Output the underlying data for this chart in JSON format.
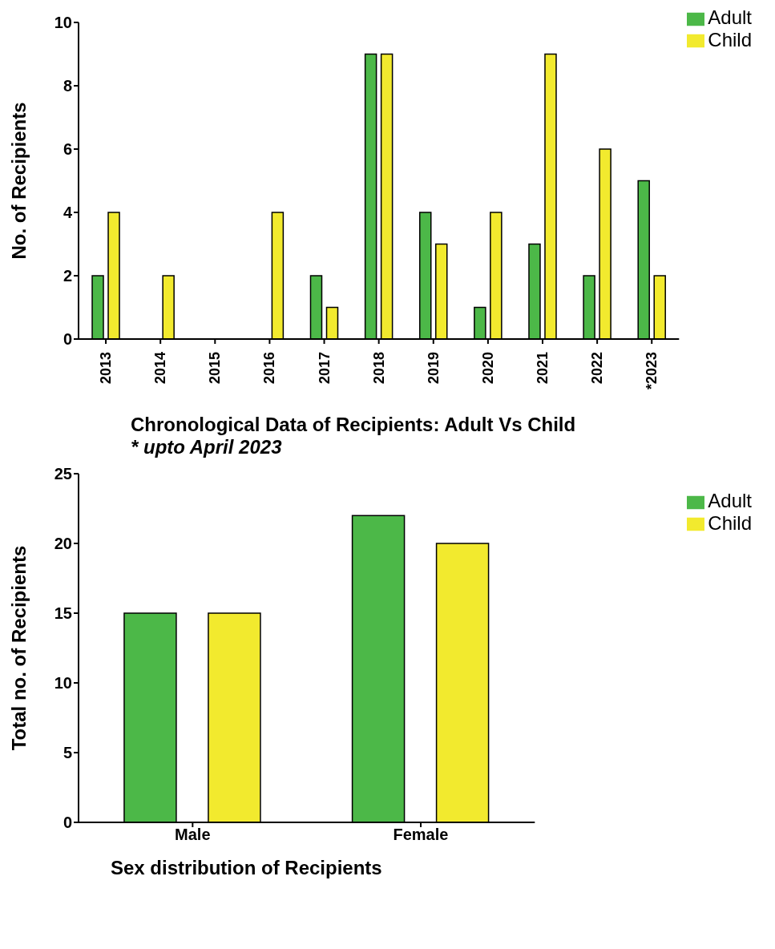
{
  "chart_data": [
    {
      "type": "bar",
      "xlabel": "Chronological Data of Recipients: Adult Vs Child",
      "ylabel": "No. of Recipients",
      "annotations": [
        "* upto April 2023"
      ],
      "categories": [
        "2013",
        "2014",
        "2015",
        "2016",
        "2017",
        "2018",
        "2019",
        "2020",
        "2021",
        "2022",
        "*2023"
      ],
      "series": [
        {
          "name": "Adult",
          "color": "#4cb848",
          "values": [
            2,
            0,
            0,
            0,
            2,
            9,
            4,
            1,
            3,
            2,
            5
          ]
        },
        {
          "name": "Child",
          "color": "#f2ea2e",
          "values": [
            4,
            2,
            0,
            4,
            1,
            9,
            3,
            4,
            9,
            6,
            2
          ]
        }
      ],
      "ylim": [
        0,
        10
      ],
      "yticks": [
        0,
        2,
        4,
        6,
        8,
        10
      ],
      "grid": false,
      "legend": "top right"
    },
    {
      "type": "bar",
      "xlabel": "Sex distribution of Recipients",
      "ylabel": "Total no. of Recipients",
      "categories": [
        "Male",
        "Female"
      ],
      "series": [
        {
          "name": "Adult",
          "color": "#4cb848",
          "values": [
            15,
            22
          ]
        },
        {
          "name": "Child",
          "color": "#f2ea2e",
          "values": [
            15,
            20
          ]
        }
      ],
      "ylim": [
        0,
        25
      ],
      "yticks": [
        0,
        5,
        10,
        15,
        20,
        25
      ],
      "grid": false,
      "legend": "top right"
    }
  ]
}
